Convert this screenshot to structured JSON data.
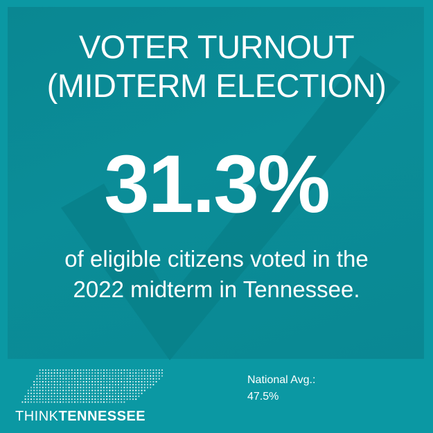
{
  "title_lines": [
    "VOTER TURNOUT",
    "(MIDTERM ELECTION)"
  ],
  "stat": "31.3%",
  "subtitle_lines": [
    "of eligible citizens voted in the",
    "2022 midterm in Tennessee."
  ],
  "national": {
    "label": "National Avg.:",
    "value": "47.5%"
  },
  "logo": {
    "word_1": "THINK",
    "word_2": "TENNESSEE",
    "icon": "tennessee-dot-map-icon"
  },
  "colors": {
    "background": "#0b98a3",
    "panel": "#0a8792",
    "checkmark": "#097a84",
    "text": "#ffffff"
  }
}
